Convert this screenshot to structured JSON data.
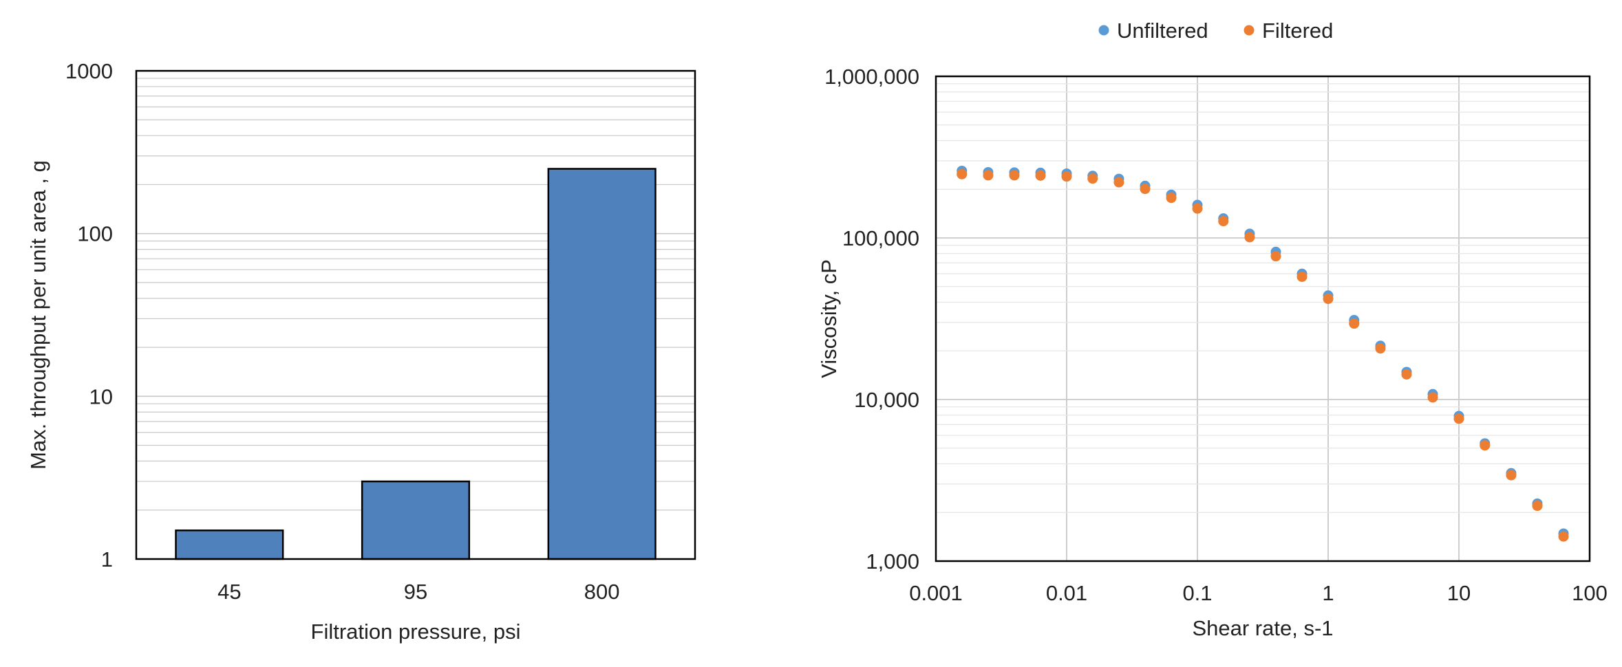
{
  "chart_data": [
    {
      "type": "bar",
      "title": "",
      "xlabel": "Filtration pressure, psi",
      "ylabel": "Max. throughput per unit area , g",
      "yscale": "log",
      "ylim": [
        1,
        1000
      ],
      "yticks": [
        1,
        10,
        100,
        1000
      ],
      "ytick_labels": [
        "1",
        "10",
        "100",
        "1000"
      ],
      "grid": "horizontal minor and major",
      "categories": [
        "45",
        "95",
        "800"
      ],
      "values": [
        1.5,
        3,
        250
      ],
      "colors": {
        "bar_fill": "#4f81bd",
        "bar_edge": "#000000",
        "grid": "#c8c8c8"
      }
    },
    {
      "type": "scatter",
      "title": "",
      "xlabel": "Shear rate, s-1",
      "ylabel": "Viscosity, cP",
      "xscale": "log",
      "yscale": "log",
      "xlim": [
        0.001,
        100
      ],
      "ylim": [
        1000,
        1000000
      ],
      "xticks": [
        0.001,
        0.01,
        0.1,
        1,
        10,
        100
      ],
      "xtick_labels": [
        "0.001",
        "0.01",
        "0.1",
        "1",
        "10",
        "100"
      ],
      "yticks": [
        1000,
        10000,
        100000,
        1000000
      ],
      "ytick_labels": [
        "1,000",
        "10,000",
        "100,000",
        "1,000,000"
      ],
      "grid": "major and minor",
      "legend_position": "top-center",
      "x": [
        0.00158,
        0.00251,
        0.00398,
        0.00631,
        0.01,
        0.0158,
        0.0251,
        0.0398,
        0.0631,
        0.1,
        0.158,
        0.251,
        0.398,
        0.631,
        1,
        1.58,
        2.51,
        3.98,
        6.31,
        10,
        15.8,
        25.1,
        39.8,
        63.1
      ],
      "series": [
        {
          "name": "Unfiltered",
          "color": "#5b9bd5",
          "values": [
            260000,
            255000,
            254000,
            253000,
            250000,
            242000,
            232000,
            210000,
            185000,
            160000,
            132000,
            106000,
            82000,
            60000,
            44000,
            31000,
            21500,
            14800,
            10800,
            7900,
            5350,
            3500,
            2270,
            1480
          ]
        },
        {
          "name": "Filtered",
          "color": "#ed7d31",
          "values": [
            248000,
            244000,
            244000,
            243000,
            240000,
            233000,
            221000,
            201000,
            177000,
            152000,
            127000,
            101000,
            77000,
            57500,
            42000,
            29500,
            20700,
            14300,
            10300,
            7600,
            5200,
            3400,
            2200,
            1420
          ]
        }
      ]
    }
  ]
}
